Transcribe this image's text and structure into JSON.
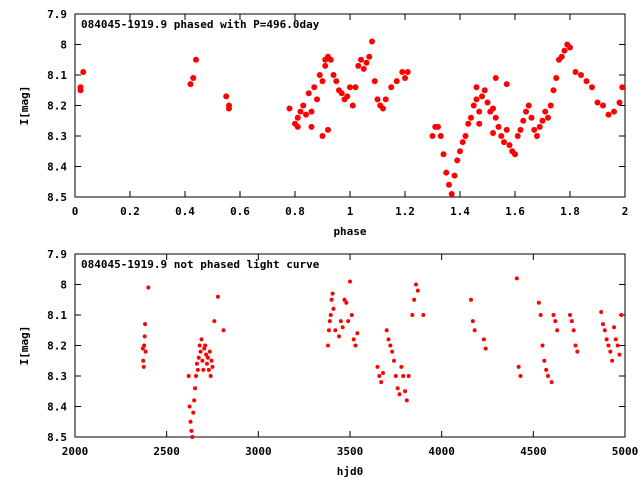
{
  "chart_data": [
    {
      "type": "scatter",
      "title": "084045-1919.9 phased with P=496.0day",
      "xlabel": "phase",
      "ylabel": "I[mag]",
      "xlim": [
        0,
        2
      ],
      "ylim": [
        8.5,
        7.9
      ],
      "y_inverted": true,
      "xticks": [
        "0",
        "0.2",
        "0.4",
        "0.6",
        "0.8",
        "1",
        "1.2",
        "1.4",
        "1.6",
        "1.8",
        "2"
      ],
      "yticks": [
        "7.9",
        "8",
        "8.1",
        "8.2",
        "8.3",
        "8.4",
        "8.5"
      ],
      "marker_color": "#ff0000",
      "x": [
        0.02,
        0.03,
        0.02,
        0.42,
        0.43,
        0.44,
        0.55,
        0.56,
        0.56,
        0.78,
        0.8,
        0.81,
        0.82,
        0.81,
        0.83,
        0.84,
        0.85,
        0.86,
        0.87,
        0.88,
        0.89,
        0.9,
        0.91,
        0.91,
        0.92,
        0.93,
        0.94,
        0.95,
        0.96,
        0.97,
        0.98,
        0.99,
        1.0,
        1.01,
        1.02,
        1.03,
        1.04,
        1.05,
        1.06,
        1.07,
        1.08,
        1.09,
        1.1,
        1.11,
        1.12,
        1.13,
        1.15,
        1.17,
        1.19,
        1.2,
        1.21,
        0.9,
        0.92,
        0.86,
        1.32,
        1.33,
        1.34,
        1.35,
        1.36,
        1.37,
        1.38,
        1.39,
        1.4,
        1.41,
        1.42,
        1.43,
        1.44,
        1.45,
        1.46,
        1.47,
        1.48,
        1.49,
        1.5,
        1.51,
        1.52,
        1.53,
        1.54,
        1.55,
        1.56,
        1.57,
        1.58,
        1.59,
        1.6,
        1.61,
        1.62,
        1.63,
        1.64,
        1.65,
        1.66,
        1.67,
        1.68,
        1.69,
        1.7,
        1.71,
        1.72,
        1.73,
        1.74,
        1.75,
        1.76,
        1.77,
        1.78,
        1.79,
        1.8,
        1.82,
        1.84,
        1.86,
        1.88,
        1.9,
        1.92,
        1.94,
        1.96,
        1.98,
        1.99,
        1.3,
        1.31,
        1.46,
        1.53,
        1.57,
        1.52,
        1.47
      ],
      "y": [
        8.14,
        8.09,
        8.15,
        8.13,
        8.11,
        8.05,
        8.17,
        8.2,
        8.21,
        8.21,
        8.26,
        8.24,
        8.22,
        8.27,
        8.2,
        8.23,
        8.16,
        8.22,
        8.14,
        8.18,
        8.1,
        8.12,
        8.05,
        8.07,
        8.04,
        8.05,
        8.1,
        8.12,
        8.15,
        8.16,
        8.18,
        8.17,
        8.14,
        8.2,
        8.14,
        8.07,
        8.05,
        8.08,
        8.06,
        8.04,
        7.99,
        8.12,
        8.18,
        8.2,
        8.21,
        8.18,
        8.14,
        8.12,
        8.09,
        8.11,
        8.09,
        8.3,
        8.28,
        8.27,
        8.27,
        8.3,
        8.36,
        8.42,
        8.46,
        8.49,
        8.43,
        8.38,
        8.35,
        8.32,
        8.3,
        8.26,
        8.24,
        8.2,
        8.18,
        8.22,
        8.17,
        8.15,
        8.19,
        8.22,
        8.21,
        8.24,
        8.27,
        8.3,
        8.32,
        8.28,
        8.33,
        8.35,
        8.36,
        8.3,
        8.28,
        8.25,
        8.22,
        8.2,
        8.24,
        8.28,
        8.3,
        8.27,
        8.25,
        8.22,
        8.24,
        8.2,
        8.15,
        8.11,
        8.05,
        8.04,
        8.02,
        8.0,
        8.01,
        8.09,
        8.1,
        8.12,
        8.14,
        8.19,
        8.2,
        8.23,
        8.22,
        8.19,
        8.14,
        8.3,
        8.27,
        8.14,
        8.11,
        8.13,
        8.29,
        8.26
      ]
    },
    {
      "type": "scatter",
      "title": "084045-1919.9 not phased light curve",
      "xlabel": "hjd0",
      "ylabel": "I[mag]",
      "xlim": [
        2000,
        5000
      ],
      "ylim": [
        8.5,
        7.9
      ],
      "y_inverted": true,
      "xticks": [
        "2000",
        "2500",
        "3000",
        "3500",
        "4000",
        "4500",
        "5000"
      ],
      "yticks": [
        "7.9",
        "8",
        "8.1",
        "8.2",
        "8.3",
        "8.4",
        "8.5"
      ],
      "marker_color": "#ff0000",
      "x": [
        2370,
        2372,
        2375,
        2377,
        2380,
        2382,
        2385,
        2400,
        2620,
        2625,
        2630,
        2635,
        2640,
        2645,
        2650,
        2655,
        2660,
        2665,
        2670,
        2675,
        2680,
        2685,
        2690,
        2695,
        2700,
        2705,
        2710,
        2715,
        2720,
        2725,
        2730,
        2735,
        2740,
        2745,
        2750,
        2760,
        2780,
        2810,
        3380,
        3385,
        3390,
        3395,
        3400,
        3405,
        3410,
        3420,
        3440,
        3450,
        3460,
        3470,
        3480,
        3490,
        3500,
        3510,
        3520,
        3530,
        3540,
        3650,
        3660,
        3670,
        3680,
        3700,
        3710,
        3720,
        3730,
        3740,
        3750,
        3760,
        3770,
        3780,
        3790,
        3800,
        3810,
        3820,
        3840,
        3850,
        3860,
        3870,
        3900,
        4160,
        4170,
        4180,
        4230,
        4240,
        4410,
        4420,
        4430,
        4530,
        4540,
        4550,
        4560,
        4570,
        4580,
        4600,
        4610,
        4620,
        4630,
        4700,
        4710,
        4720,
        4730,
        4740,
        4870,
        4880,
        4890,
        4900,
        4910,
        4920,
        4930,
        4940,
        4950,
        4960,
        4970,
        4980
      ],
      "y": [
        8.21,
        8.25,
        8.27,
        8.2,
        8.17,
        8.13,
        8.22,
        8.01,
        8.3,
        8.4,
        8.45,
        8.48,
        8.5,
        8.42,
        8.38,
        8.34,
        8.3,
        8.26,
        8.28,
        8.24,
        8.2,
        8.22,
        8.18,
        8.25,
        8.28,
        8.21,
        8.2,
        8.23,
        8.26,
        8.24,
        8.28,
        8.22,
        8.3,
        8.25,
        8.27,
        8.12,
        8.04,
        8.15,
        8.2,
        8.15,
        8.12,
        8.1,
        8.05,
        8.03,
        8.08,
        8.15,
        8.17,
        8.12,
        8.14,
        8.05,
        8.06,
        8.12,
        7.99,
        8.1,
        8.18,
        8.2,
        8.16,
        8.27,
        8.3,
        8.32,
        8.29,
        8.15,
        8.18,
        8.2,
        8.22,
        8.25,
        8.3,
        8.34,
        8.36,
        8.27,
        8.3,
        8.35,
        8.38,
        8.3,
        8.1,
        8.05,
        8.0,
        8.02,
        8.1,
        8.05,
        8.12,
        8.15,
        8.18,
        8.21,
        7.98,
        8.27,
        8.3,
        8.06,
        8.1,
        8.2,
        8.25,
        8.28,
        8.3,
        8.32,
        8.1,
        8.12,
        8.15,
        8.1,
        8.12,
        8.15,
        8.2,
        8.22,
        8.09,
        8.13,
        8.15,
        8.18,
        8.2,
        8.22,
        8.25,
        8.14,
        8.18,
        8.2,
        8.23,
        8.1
      ]
    }
  ]
}
